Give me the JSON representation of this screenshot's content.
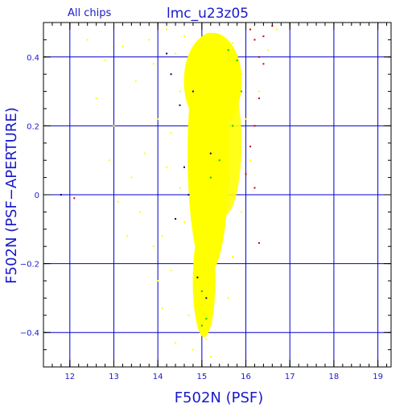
{
  "header": {
    "subset_label": "All chips",
    "field_title": "lmc_u23z05"
  },
  "chart_data": {
    "type": "scatter",
    "title": "lmc_u23z05",
    "subtitle": "All chips",
    "xlabel": "F502N (PSF)",
    "ylabel": "F502N (PSF−APERTURE)",
    "xlim": [
      11.4,
      19.3
    ],
    "ylim": [
      -0.5,
      0.5
    ],
    "x_ticks": [
      12,
      13,
      14,
      15,
      16,
      17,
      18,
      19
    ],
    "x_tick_labels": [
      "12",
      "13",
      "14",
      "15",
      "16",
      "17",
      "18",
      "19"
    ],
    "y_ticks": [
      -0.4,
      -0.2,
      0,
      0.2,
      0.4
    ],
    "y_tick_labels": [
      "−0.4",
      "−0.2",
      "0",
      "0.2",
      "0.4"
    ],
    "grid": true,
    "grid_color": "#0000cc",
    "axis_color": "#000000",
    "label_color": "#1a1acc",
    "series": [
      {
        "color": "#ffff00",
        "points": [
          [
            12.8,
            0.39
          ],
          [
            13.2,
            0.43
          ],
          [
            13.5,
            0.33
          ],
          [
            13.9,
            0.38
          ],
          [
            14.0,
            0.22
          ],
          [
            13.7,
            0.12
          ],
          [
            13.4,
            0.05
          ],
          [
            13.6,
            -0.05
          ],
          [
            14.1,
            -0.12
          ],
          [
            14.3,
            -0.22
          ],
          [
            14.1,
            -0.33
          ],
          [
            14.4,
            -0.43
          ],
          [
            13.8,
            0.45
          ],
          [
            14.2,
            0.48
          ],
          [
            14.4,
            0.41
          ],
          [
            14.6,
            0.46
          ],
          [
            14.7,
            0.35
          ],
          [
            14.8,
            0.25
          ],
          [
            14.9,
            0.15
          ],
          [
            15.0,
            0.05
          ],
          [
            15.1,
            -0.03
          ],
          [
            15.2,
            -0.12
          ],
          [
            14.9,
            -0.2
          ],
          [
            15.0,
            -0.28
          ],
          [
            15.0,
            -0.36
          ],
          [
            15.1,
            -0.42
          ],
          [
            14.8,
            0.1
          ],
          [
            15.3,
            0.2
          ],
          [
            15.5,
            0.3
          ],
          [
            15.2,
            0.4
          ],
          [
            15.7,
            0.44
          ],
          [
            15.9,
            0.35
          ],
          [
            16.0,
            0.22
          ],
          [
            15.8,
            0.12
          ],
          [
            15.6,
            0.02
          ],
          [
            15.5,
            -0.08
          ],
          [
            15.4,
            -0.15
          ],
          [
            15.3,
            -0.25
          ],
          [
            15.6,
            -0.3
          ],
          [
            14.5,
            0.02
          ],
          [
            14.6,
            -0.08
          ],
          [
            14.3,
            0.18
          ],
          [
            14.2,
            0.08
          ],
          [
            14.5,
            0.3
          ],
          [
            15.1,
            0.32
          ],
          [
            15.4,
            0.36
          ],
          [
            13.0,
            0.2
          ],
          [
            12.6,
            0.28
          ],
          [
            12.4,
            0.45
          ],
          [
            13.3,
            -0.12
          ],
          [
            13.1,
            -0.02
          ],
          [
            12.9,
            0.1
          ],
          [
            14.0,
            -0.25
          ],
          [
            13.9,
            -0.15
          ],
          [
            14.7,
            -0.35
          ],
          [
            14.8,
            -0.45
          ],
          [
            15.2,
            -0.47
          ],
          [
            16.3,
            0.3
          ],
          [
            16.1,
            0.1
          ],
          [
            15.9,
            -0.05
          ],
          [
            15.7,
            -0.18
          ],
          [
            16.5,
            0.42
          ],
          [
            16.7,
            0.48
          ]
        ]
      },
      {
        "color": "#00cc00",
        "points": [
          [
            15.6,
            0.42
          ],
          [
            15.8,
            0.39
          ],
          [
            15.9,
            0.3
          ],
          [
            15.7,
            0.2
          ],
          [
            15.4,
            0.1
          ],
          [
            15.2,
            0.05
          ],
          [
            15.0,
            -0.28
          ],
          [
            15.1,
            -0.36
          ],
          [
            15.0,
            -0.38
          ]
        ]
      },
      {
        "color": "#cc0000",
        "points": [
          [
            16.1,
            0.48
          ],
          [
            16.2,
            0.45
          ],
          [
            16.3,
            0.4
          ],
          [
            16.4,
            0.38
          ],
          [
            16.3,
            0.28
          ],
          [
            16.2,
            0.2
          ],
          [
            16.1,
            0.14
          ],
          [
            16.0,
            0.06
          ],
          [
            16.2,
            0.02
          ],
          [
            16.4,
            0.46
          ],
          [
            16.6,
            0.49
          ],
          [
            16.3,
            -0.14
          ],
          [
            12.1,
            -0.01
          ]
        ]
      },
      {
        "color": "#00007a",
        "points": [
          [
            14.2,
            0.41
          ],
          [
            14.3,
            0.35
          ],
          [
            14.5,
            0.26
          ],
          [
            14.6,
            0.08
          ],
          [
            14.7,
            0.0
          ],
          [
            14.4,
            -0.07
          ],
          [
            14.9,
            -0.24
          ],
          [
            15.1,
            -0.3
          ],
          [
            11.8,
            0.0
          ],
          [
            15.2,
            0.12
          ],
          [
            14.8,
            0.3
          ]
        ]
      }
    ]
  }
}
